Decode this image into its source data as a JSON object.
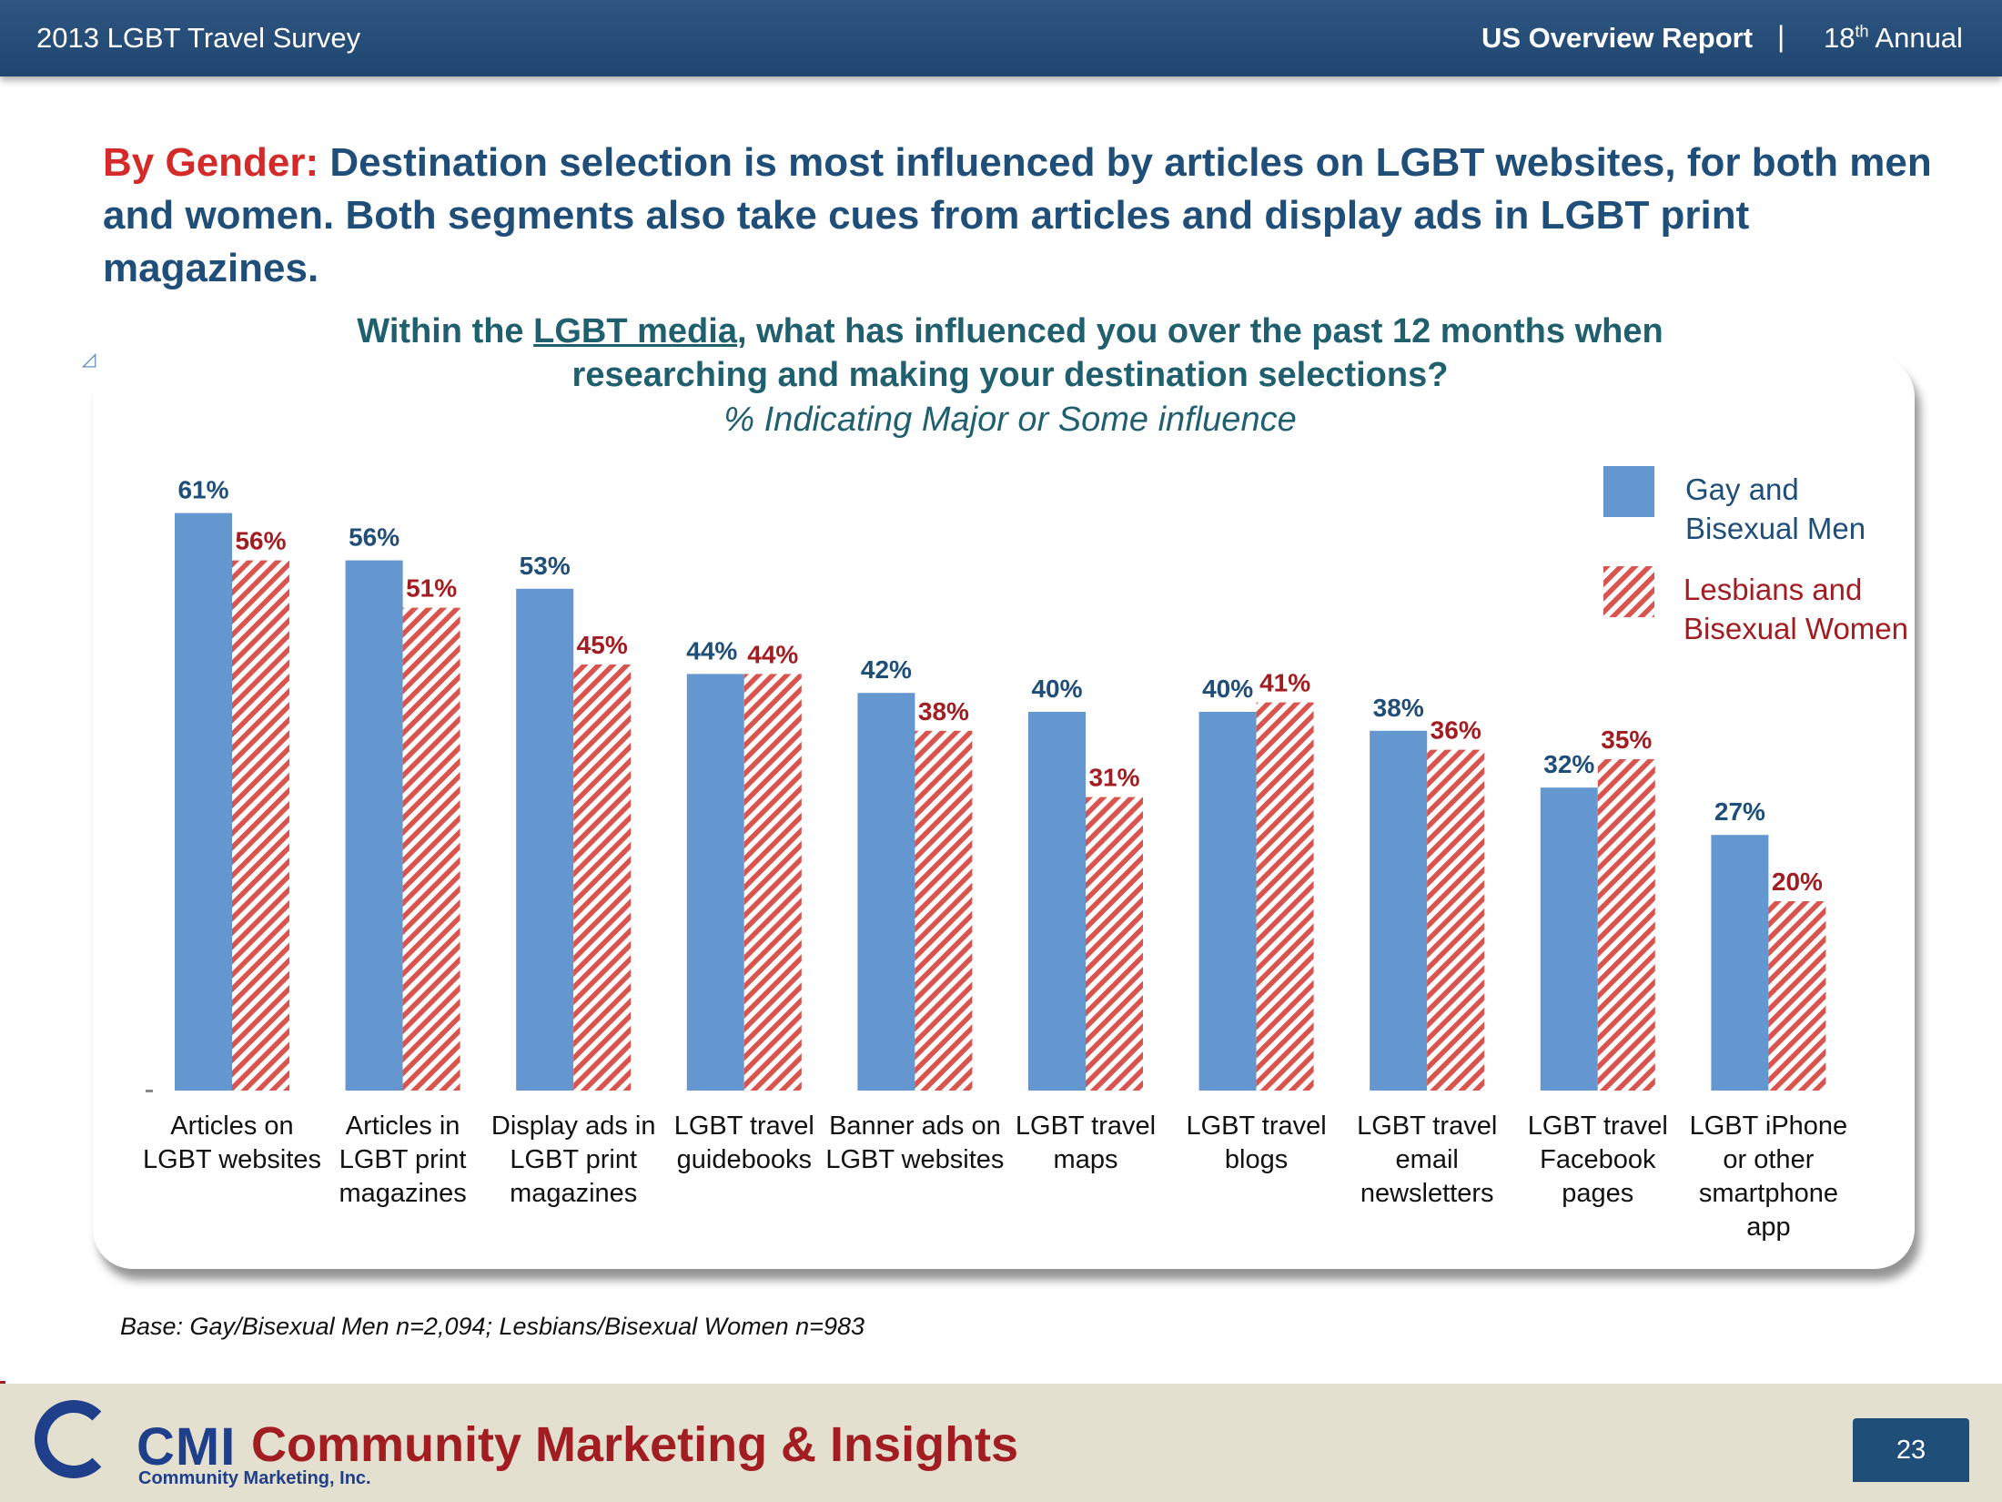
{
  "header": {
    "survey": "2013 LGBT Travel Survey",
    "report": "US Overview Report",
    "separator": "|",
    "annual_num": "18",
    "annual_sup": "th",
    "annual_word": "Annual"
  },
  "headline": {
    "lead": "By Gender:",
    "text": "Destination selection is most influenced by articles on LGBT websites, for both men and women. Both segments also take cues from articles and display ads in LGBT print magazines."
  },
  "question": {
    "pre": "Within the",
    "underlined": "LGBT media",
    "post": ", what has influenced you over the past 12 months when researching and making your destination selections?",
    "sub": "% Indicating Major or Some influence"
  },
  "chart_data": {
    "type": "bar",
    "categories": [
      "Articles on LGBT websites",
      "Articles in LGBT print magazines",
      "Display ads in LGBT print magazines",
      "LGBT travel guidebooks",
      "Banner ads on LGBT websites",
      "LGBT travel maps",
      "LGBT travel blogs",
      "LGBT travel email newsletters",
      "LGBT travel Facebook pages",
      "LGBT iPhone or other smartphone app"
    ],
    "series": [
      {
        "name": "Gay and Bisexual Men",
        "values": [
          61,
          56,
          53,
          44,
          42,
          40,
          40,
          38,
          32,
          27
        ],
        "color": "#6497cf",
        "pattern": "solid"
      },
      {
        "name": "Lesbians and Bisexual Women",
        "values": [
          56,
          51,
          45,
          44,
          38,
          31,
          41,
          36,
          35,
          20
        ],
        "color": "#d9534f",
        "pattern": "diagonal-hatch"
      }
    ],
    "value_suffix": "%",
    "ylim": [
      0,
      65
    ],
    "legend_position": "top-right",
    "grid": false
  },
  "legend": {
    "men_line1": "Gay and",
    "men_line2": "Bisexual Men",
    "women_line1": "Lesbians and",
    "women_line2": "Bisexual Women"
  },
  "colors": {
    "men_label": "#1f4e79",
    "women_label": "#a11d21",
    "men_bar": "#6497cf",
    "women_hatch": "#d9534f"
  },
  "base_note": "Base: Gay/Bisexual Men n=2,094; Lesbians/Bisexual Women n=983",
  "footer": {
    "logo_cmi": "CMI",
    "logo_name": "Community Marketing & Insights",
    "logo_sub": "Community Marketing, Inc.",
    "page_number": "23"
  }
}
